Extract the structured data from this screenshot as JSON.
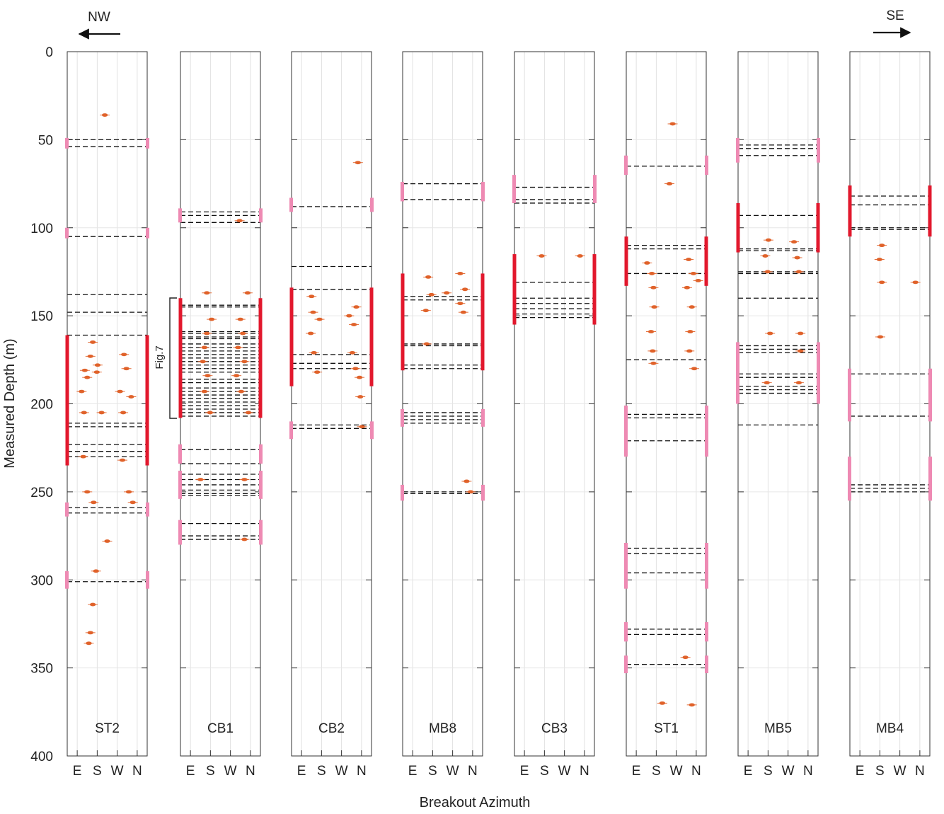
{
  "chart_data": {
    "type": "scatter",
    "ylabel": "Measured Depth (m)",
    "xlabel": "Breakout Azimuth",
    "ylim": [
      0,
      400
    ],
    "y_ticks": [
      0,
      50,
      100,
      150,
      200,
      250,
      300,
      350,
      400
    ],
    "x_ticks": [
      "E",
      "S",
      "W",
      "N"
    ],
    "direction_left": "NW",
    "direction_right": "SE",
    "bracket_label": "Fig.7",
    "colors": {
      "points": "#e0622a",
      "fault_major": "#e2182d",
      "fault_minor": "#ee8ab3",
      "dashes": "#111111"
    },
    "wells": [
      {
        "name": "ST2",
        "points": [
          [
            0.47,
            36
          ],
          [
            0.32,
            165
          ],
          [
            0.29,
            173
          ],
          [
            0.22,
            181
          ],
          [
            0.18,
            193
          ],
          [
            0.21,
            205
          ],
          [
            0.2,
            230
          ],
          [
            0.25,
            250
          ],
          [
            0.33,
            256
          ],
          [
            0.5,
            278
          ],
          [
            0.36,
            295
          ],
          [
            0.32,
            314
          ],
          [
            0.29,
            330
          ],
          [
            0.27,
            336
          ],
          [
            0.38,
            178
          ],
          [
            0.37,
            182
          ],
          [
            0.71,
            172
          ],
          [
            0.74,
            180
          ],
          [
            0.66,
            193
          ],
          [
            0.7,
            205
          ],
          [
            0.8,
            196
          ],
          [
            0.77,
            250
          ],
          [
            0.82,
            256
          ],
          [
            0.69,
            232
          ],
          [
            0.43,
            205
          ],
          [
            0.25,
            185
          ]
        ],
        "dashes": [
          50,
          54,
          105,
          138,
          148,
          161,
          211,
          213,
          223,
          227,
          230,
          259,
          262,
          301
        ],
        "major": [
          [
            161,
            235
          ]
        ],
        "minor": [
          [
            49,
            55
          ],
          [
            100,
            106
          ],
          [
            256,
            264
          ],
          [
            295,
            305
          ]
        ]
      },
      {
        "name": "CB1",
        "points": [
          [
            0.33,
            137
          ],
          [
            0.84,
            137
          ],
          [
            0.74,
            96
          ],
          [
            0.39,
            152
          ],
          [
            0.33,
            160
          ],
          [
            0.3,
            168
          ],
          [
            0.28,
            176
          ],
          [
            0.34,
            184
          ],
          [
            0.3,
            193
          ],
          [
            0.37,
            205
          ],
          [
            0.75,
            152
          ],
          [
            0.78,
            160
          ],
          [
            0.72,
            168
          ],
          [
            0.8,
            176
          ],
          [
            0.7,
            184
          ],
          [
            0.76,
            193
          ],
          [
            0.85,
            205
          ],
          [
            0.25,
            243
          ],
          [
            0.8,
            243
          ],
          [
            0.8,
            277
          ]
        ],
        "dashes": [
          91,
          93,
          97,
          144,
          145,
          159,
          160,
          162,
          163,
          166,
          168,
          170,
          172,
          174,
          176,
          178,
          180,
          182,
          186,
          188,
          191,
          193,
          195,
          197,
          199,
          201,
          203,
          205,
          207,
          226,
          234,
          240,
          243,
          246,
          249,
          251,
          252,
          268,
          275,
          277
        ],
        "major": [
          [
            140,
            208
          ]
        ],
        "minor": [
          [
            89,
            97
          ],
          [
            223,
            234
          ],
          [
            238,
            254
          ],
          [
            266,
            280
          ]
        ]
      },
      {
        "name": "CB2",
        "points": [
          [
            0.83,
            63
          ],
          [
            0.25,
            139
          ],
          [
            0.27,
            148
          ],
          [
            0.35,
            152
          ],
          [
            0.24,
            160
          ],
          [
            0.28,
            171
          ],
          [
            0.32,
            182
          ],
          [
            0.72,
            150
          ],
          [
            0.78,
            155
          ],
          [
            0.81,
            145
          ],
          [
            0.76,
            171
          ],
          [
            0.8,
            180
          ],
          [
            0.85,
            185
          ],
          [
            0.86,
            196
          ],
          [
            0.88,
            213
          ]
        ],
        "dashes": [
          88,
          122,
          135,
          172,
          177,
          180,
          212,
          214
        ],
        "major": [
          [
            134,
            190
          ]
        ],
        "minor": [
          [
            83,
            91
          ],
          [
            210,
            220
          ]
        ]
      },
      {
        "name": "MB8",
        "points": [
          [
            0.32,
            128
          ],
          [
            0.36,
            138
          ],
          [
            0.29,
            147
          ],
          [
            0.55,
            137
          ],
          [
            0.72,
            126
          ],
          [
            0.78,
            135
          ],
          [
            0.72,
            143
          ],
          [
            0.76,
            148
          ],
          [
            0.3,
            166
          ],
          [
            0.8,
            244
          ],
          [
            0.85,
            250
          ]
        ],
        "dashes": [
          75,
          84,
          139,
          141,
          166,
          167,
          178,
          180,
          205,
          207,
          209,
          211,
          250,
          251
        ],
        "major": [
          [
            126,
            181
          ]
        ],
        "minor": [
          [
            74,
            85
          ],
          [
            203,
            213
          ],
          [
            246,
            255
          ]
        ]
      },
      {
        "name": "CB3",
        "points": [
          [
            0.34,
            116
          ],
          [
            0.82,
            116
          ]
        ],
        "dashes": [
          77,
          84,
          86,
          131,
          140,
          143,
          146,
          149,
          151
        ],
        "major": [
          [
            115,
            155
          ]
        ],
        "minor": [
          [
            70,
            86
          ]
        ]
      },
      {
        "name": "ST1",
        "points": [
          [
            0.58,
            41
          ],
          [
            0.54,
            75
          ],
          [
            0.26,
            120
          ],
          [
            0.32,
            126
          ],
          [
            0.34,
            134
          ],
          [
            0.35,
            145
          ],
          [
            0.31,
            159
          ],
          [
            0.33,
            170
          ],
          [
            0.34,
            177
          ],
          [
            0.78,
            118
          ],
          [
            0.84,
            126
          ],
          [
            0.76,
            134
          ],
          [
            0.82,
            145
          ],
          [
            0.8,
            159
          ],
          [
            0.79,
            170
          ],
          [
            0.85,
            180
          ],
          [
            0.9,
            130
          ],
          [
            0.45,
            370
          ],
          [
            0.82,
            371
          ],
          [
            0.74,
            344
          ]
        ],
        "dashes": [
          65,
          110,
          112,
          126,
          175,
          206,
          208,
          221,
          282,
          285,
          296,
          328,
          331,
          348
        ],
        "major": [
          [
            105,
            133
          ]
        ],
        "minor": [
          [
            59,
            70
          ],
          [
            201,
            230
          ],
          [
            279,
            305
          ],
          [
            324,
            335
          ],
          [
            343,
            353
          ]
        ]
      },
      {
        "name": "MB5",
        "points": [
          [
            0.38,
            107
          ],
          [
            0.34,
            116
          ],
          [
            0.37,
            125
          ],
          [
            0.7,
            108
          ],
          [
            0.74,
            117
          ],
          [
            0.76,
            125
          ],
          [
            0.4,
            160
          ],
          [
            0.36,
            188
          ],
          [
            0.78,
            160
          ],
          [
            0.78,
            170
          ],
          [
            0.76,
            188
          ]
        ],
        "dashes": [
          53,
          55,
          59,
          93,
          112,
          113,
          125,
          126,
          140,
          167,
          169,
          171,
          183,
          185,
          190,
          192,
          194,
          212
        ],
        "major": [
          [
            86,
            114
          ]
        ],
        "minor": [
          [
            49,
            63
          ],
          [
            165,
            200
          ]
        ]
      },
      {
        "name": "MB4",
        "points": [
          [
            0.4,
            110
          ],
          [
            0.37,
            118
          ],
          [
            0.4,
            131
          ],
          [
            0.38,
            162
          ],
          [
            0.82,
            131
          ]
        ],
        "dashes": [
          82,
          87,
          100,
          101,
          183,
          207,
          246,
          248,
          250
        ],
        "major": [
          [
            76,
            105
          ]
        ],
        "minor": [
          [
            180,
            210
          ],
          [
            230,
            255
          ]
        ]
      }
    ]
  }
}
